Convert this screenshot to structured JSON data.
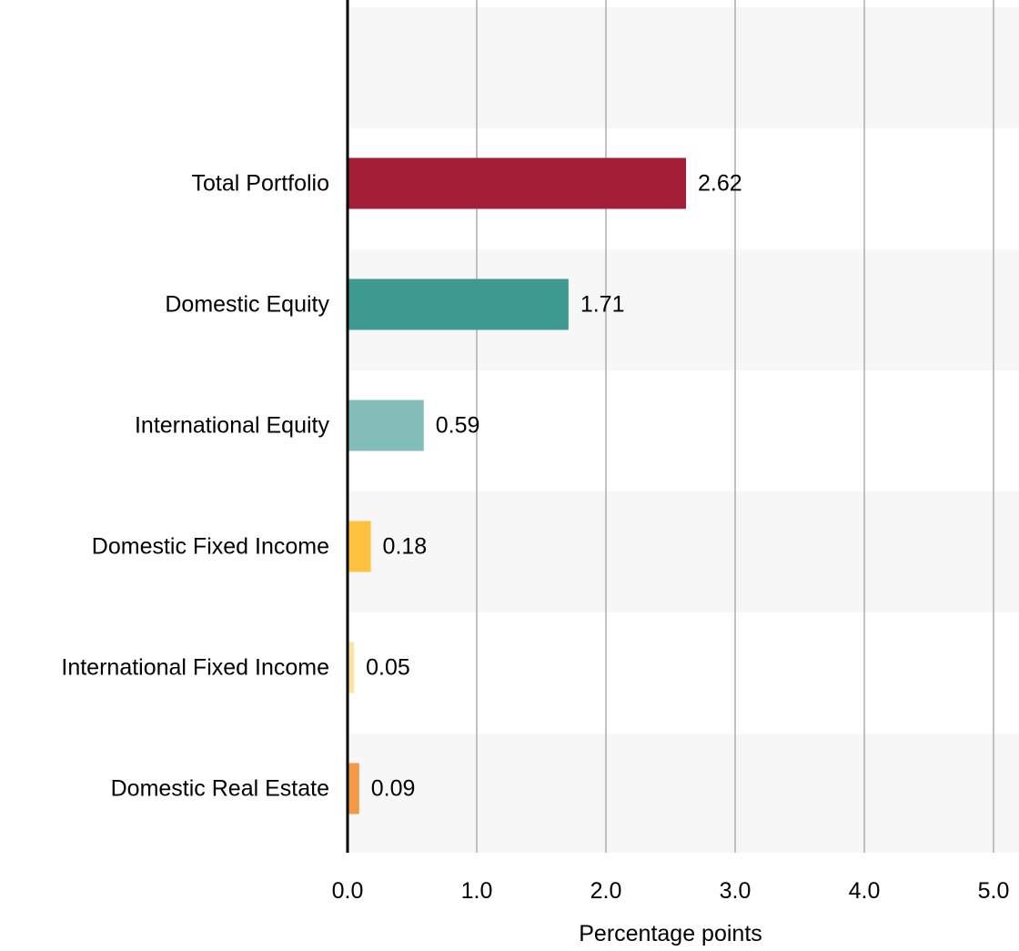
{
  "chart_data": {
    "type": "bar",
    "orientation": "horizontal",
    "categories": [
      "Total Portfolio",
      "Domestic Equity",
      "International Equity",
      "Domestic Fixed Income",
      "International Fixed Income",
      "Domestic Real Estate"
    ],
    "values": [
      2.62,
      1.71,
      0.59,
      0.18,
      0.05,
      0.09
    ],
    "value_labels": [
      "2.62",
      "1.71",
      "0.59",
      "0.18",
      "0.05",
      "0.09"
    ],
    "bar_colors": [
      "#a31f37",
      "#3e9991",
      "#82bdb8",
      "#ffc240",
      "#ffe29f",
      "#f29a43"
    ],
    "xlabel": "Percentage points",
    "xlim": [
      0,
      5
    ],
    "x_ticks": [
      0,
      1,
      2,
      3,
      4,
      5
    ],
    "x_tick_labels": [
      "0.0",
      "1.0",
      "2.0",
      "3.0",
      "4.0",
      "5.0"
    ],
    "grid": "vertical",
    "band_color": "#f7f7f7",
    "grid_color": "#b3b3b3",
    "axis_color": "#000000"
  }
}
